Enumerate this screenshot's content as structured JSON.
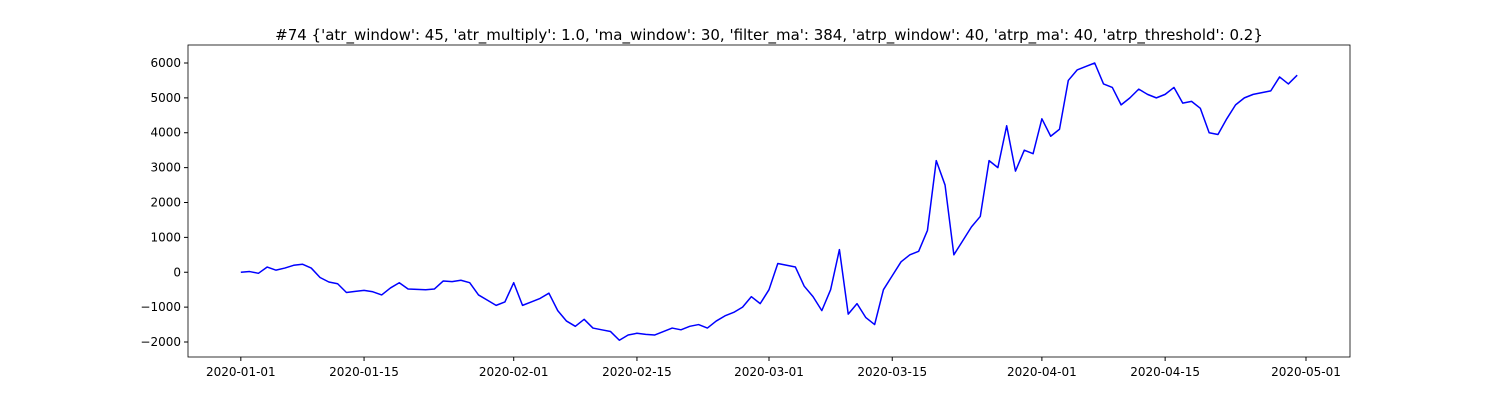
{
  "chart_data": {
    "type": "line",
    "title": "#74 {'atr_window': 45, 'atr_multiply': 1.0, 'ma_window': 30, 'filter_ma': 384, 'atrp_window': 40, 'atrp_ma': 40, 'atrp_threshold': 0.2}",
    "x": [
      "2020-01-01",
      "2020-01-02",
      "2020-01-03",
      "2020-01-04",
      "2020-01-05",
      "2020-01-06",
      "2020-01-07",
      "2020-01-08",
      "2020-01-09",
      "2020-01-10",
      "2020-01-11",
      "2020-01-12",
      "2020-01-13",
      "2020-01-14",
      "2020-01-15",
      "2020-01-16",
      "2020-01-17",
      "2020-01-18",
      "2020-01-19",
      "2020-01-20",
      "2020-01-21",
      "2020-01-22",
      "2020-01-23",
      "2020-01-24",
      "2020-01-25",
      "2020-01-26",
      "2020-01-27",
      "2020-01-28",
      "2020-01-29",
      "2020-01-30",
      "2020-01-31",
      "2020-02-01",
      "2020-02-02",
      "2020-02-03",
      "2020-02-04",
      "2020-02-05",
      "2020-02-06",
      "2020-02-07",
      "2020-02-08",
      "2020-02-09",
      "2020-02-10",
      "2020-02-11",
      "2020-02-12",
      "2020-02-13",
      "2020-02-14",
      "2020-02-15",
      "2020-02-16",
      "2020-02-17",
      "2020-02-18",
      "2020-02-19",
      "2020-02-20",
      "2020-02-21",
      "2020-02-22",
      "2020-02-23",
      "2020-02-24",
      "2020-02-25",
      "2020-02-26",
      "2020-02-27",
      "2020-02-28",
      "2020-02-29",
      "2020-03-01",
      "2020-03-02",
      "2020-03-03",
      "2020-03-04",
      "2020-03-05",
      "2020-03-06",
      "2020-03-07",
      "2020-03-08",
      "2020-03-09",
      "2020-03-10",
      "2020-03-11",
      "2020-03-12",
      "2020-03-13",
      "2020-03-14",
      "2020-03-15",
      "2020-03-16",
      "2020-03-17",
      "2020-03-18",
      "2020-03-19",
      "2020-03-20",
      "2020-03-21",
      "2020-03-22",
      "2020-03-23",
      "2020-03-24",
      "2020-03-25",
      "2020-03-26",
      "2020-03-27",
      "2020-03-28",
      "2020-03-29",
      "2020-03-30",
      "2020-03-31",
      "2020-04-01",
      "2020-04-02",
      "2020-04-03",
      "2020-04-04",
      "2020-04-05",
      "2020-04-06",
      "2020-04-07",
      "2020-04-08",
      "2020-04-09",
      "2020-04-10",
      "2020-04-11",
      "2020-04-12",
      "2020-04-13",
      "2020-04-14",
      "2020-04-15",
      "2020-04-16",
      "2020-04-17",
      "2020-04-18",
      "2020-04-19",
      "2020-04-20",
      "2020-04-21",
      "2020-04-22",
      "2020-04-23",
      "2020-04-24",
      "2020-04-25",
      "2020-04-26",
      "2020-04-27",
      "2020-04-28",
      "2020-04-29",
      "2020-04-30"
    ],
    "series": [
      {
        "color": "blue",
        "values": [
          0,
          20,
          -30,
          150,
          60,
          120,
          200,
          230,
          120,
          -150,
          -280,
          -330,
          -580,
          -550,
          -520,
          -560,
          -650,
          -450,
          -300,
          -480,
          -490,
          -500,
          -480,
          -250,
          -270,
          -230,
          -300,
          -650,
          -800,
          -950,
          -850,
          -300,
          -950,
          -850,
          -750,
          -600,
          -1100,
          -1400,
          -1550,
          -1350,
          -1600,
          -1650,
          -1700,
          -1950,
          -1800,
          -1750,
          -1780,
          -1800,
          -1700,
          -1600,
          -1650,
          -1550,
          -1500,
          -1600,
          -1400,
          -1250,
          -1150,
          -1000,
          -700,
          -900,
          -500,
          250,
          200,
          150,
          -400,
          -700,
          -1100,
          -500,
          650,
          -1200,
          -900,
          -1300,
          -1500,
          -500,
          -100,
          300,
          500,
          600,
          1200,
          3200,
          2500,
          500,
          900,
          1300,
          1600,
          3200,
          3000,
          4200,
          2900,
          3500,
          3400,
          4400,
          3900,
          4100,
          5500,
          5800,
          5900,
          6000,
          5400,
          5300,
          4800,
          5000,
          5250,
          5100,
          5000,
          5100,
          5300,
          4850,
          4900,
          4700,
          4000,
          3950,
          4400,
          4800,
          5000,
          5100,
          5150,
          5200,
          5600,
          5400,
          5650
        ]
      }
    ],
    "xlim": [
      "2019-12-26",
      "2020-05-06"
    ],
    "xticks": [
      "2020-01-01",
      "2020-01-15",
      "2020-02-01",
      "2020-02-15",
      "2020-03-01",
      "2020-03-15",
      "2020-04-01",
      "2020-04-15",
      "2020-05-01"
    ],
    "ylim": [
      -2430,
      6516
    ],
    "yticks": [
      {
        "value": -2000,
        "label": "−2000"
      },
      {
        "value": -1000,
        "label": "−1000"
      },
      0,
      1000,
      2000,
      3000,
      4000,
      5000,
      6000
    ]
  }
}
